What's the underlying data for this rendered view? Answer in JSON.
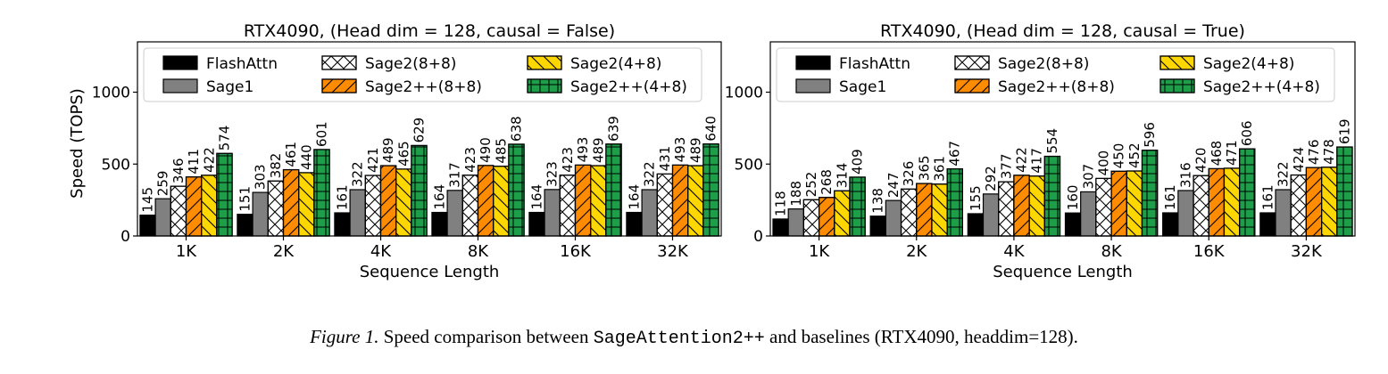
{
  "caption": {
    "label": "Figure 1.",
    "text_before": "Speed comparison between",
    "code": "SageAttention2++",
    "text_after": "and baselines (RTX4090, headdim=128)."
  },
  "series_styles": [
    {
      "name": "FlashAttn",
      "color": "#000000",
      "hatch": "none"
    },
    {
      "name": "Sage1",
      "color": "#808080",
      "hatch": "none"
    },
    {
      "name": "Sage2(8+8)",
      "color": "#ffffff",
      "hatch": "cross"
    },
    {
      "name": "Sage2++(8+8)",
      "color": "#ff8c00",
      "hatch": "forward-slash"
    },
    {
      "name": "Sage2(4+8)",
      "color": "#ffd700",
      "hatch": "back-slash"
    },
    {
      "name": "Sage2++(4+8)",
      "color": "#1f9e4a",
      "hatch": "grid"
    }
  ],
  "chart_data": [
    {
      "type": "bar",
      "title": "RTX4090, (Head dim = 128, causal = False)",
      "xlabel": "Sequence Length",
      "ylabel": "Speed (TOPS)",
      "ylim": [
        0,
        1350
      ],
      "yticks": [
        0,
        500,
        1000
      ],
      "legend_position": "top",
      "categories": [
        "1K",
        "2K",
        "4K",
        "8K",
        "16K",
        "32K"
      ],
      "series": [
        {
          "name": "FlashAttn",
          "values": [
            145,
            151,
            161,
            164,
            164,
            164
          ]
        },
        {
          "name": "Sage1",
          "values": [
            259,
            303,
            322,
            317,
            323,
            322
          ]
        },
        {
          "name": "Sage2(8+8)",
          "values": [
            346,
            382,
            421,
            423,
            423,
            431
          ]
        },
        {
          "name": "Sage2++(8+8)",
          "values": [
            411,
            461,
            489,
            490,
            493,
            493
          ]
        },
        {
          "name": "Sage2(4+8)",
          "values": [
            422,
            440,
            465,
            485,
            489,
            489
          ]
        },
        {
          "name": "Sage2++(4+8)",
          "values": [
            574,
            601,
            629,
            638,
            639,
            640
          ]
        }
      ]
    },
    {
      "type": "bar",
      "title": "RTX4090, (Head dim = 128, causal = True)",
      "xlabel": "Sequence Length",
      "ylabel": "",
      "ylim": [
        0,
        1350
      ],
      "yticks": [
        0,
        500,
        1000
      ],
      "legend_position": "top",
      "categories": [
        "1K",
        "2K",
        "4K",
        "8K",
        "16K",
        "32K"
      ],
      "series": [
        {
          "name": "FlashAttn",
          "values": [
            118,
            138,
            155,
            160,
            161,
            161
          ]
        },
        {
          "name": "Sage1",
          "values": [
            188,
            247,
            292,
            307,
            316,
            322
          ]
        },
        {
          "name": "Sage2(8+8)",
          "values": [
            252,
            326,
            377,
            400,
            420,
            424
          ]
        },
        {
          "name": "Sage2++(8+8)",
          "values": [
            268,
            365,
            422,
            450,
            468,
            476
          ]
        },
        {
          "name": "Sage2(4+8)",
          "values": [
            314,
            361,
            417,
            452,
            471,
            478
          ]
        },
        {
          "name": "Sage2++(4+8)",
          "values": [
            409,
            467,
            554,
            596,
            606,
            619
          ]
        }
      ]
    }
  ]
}
